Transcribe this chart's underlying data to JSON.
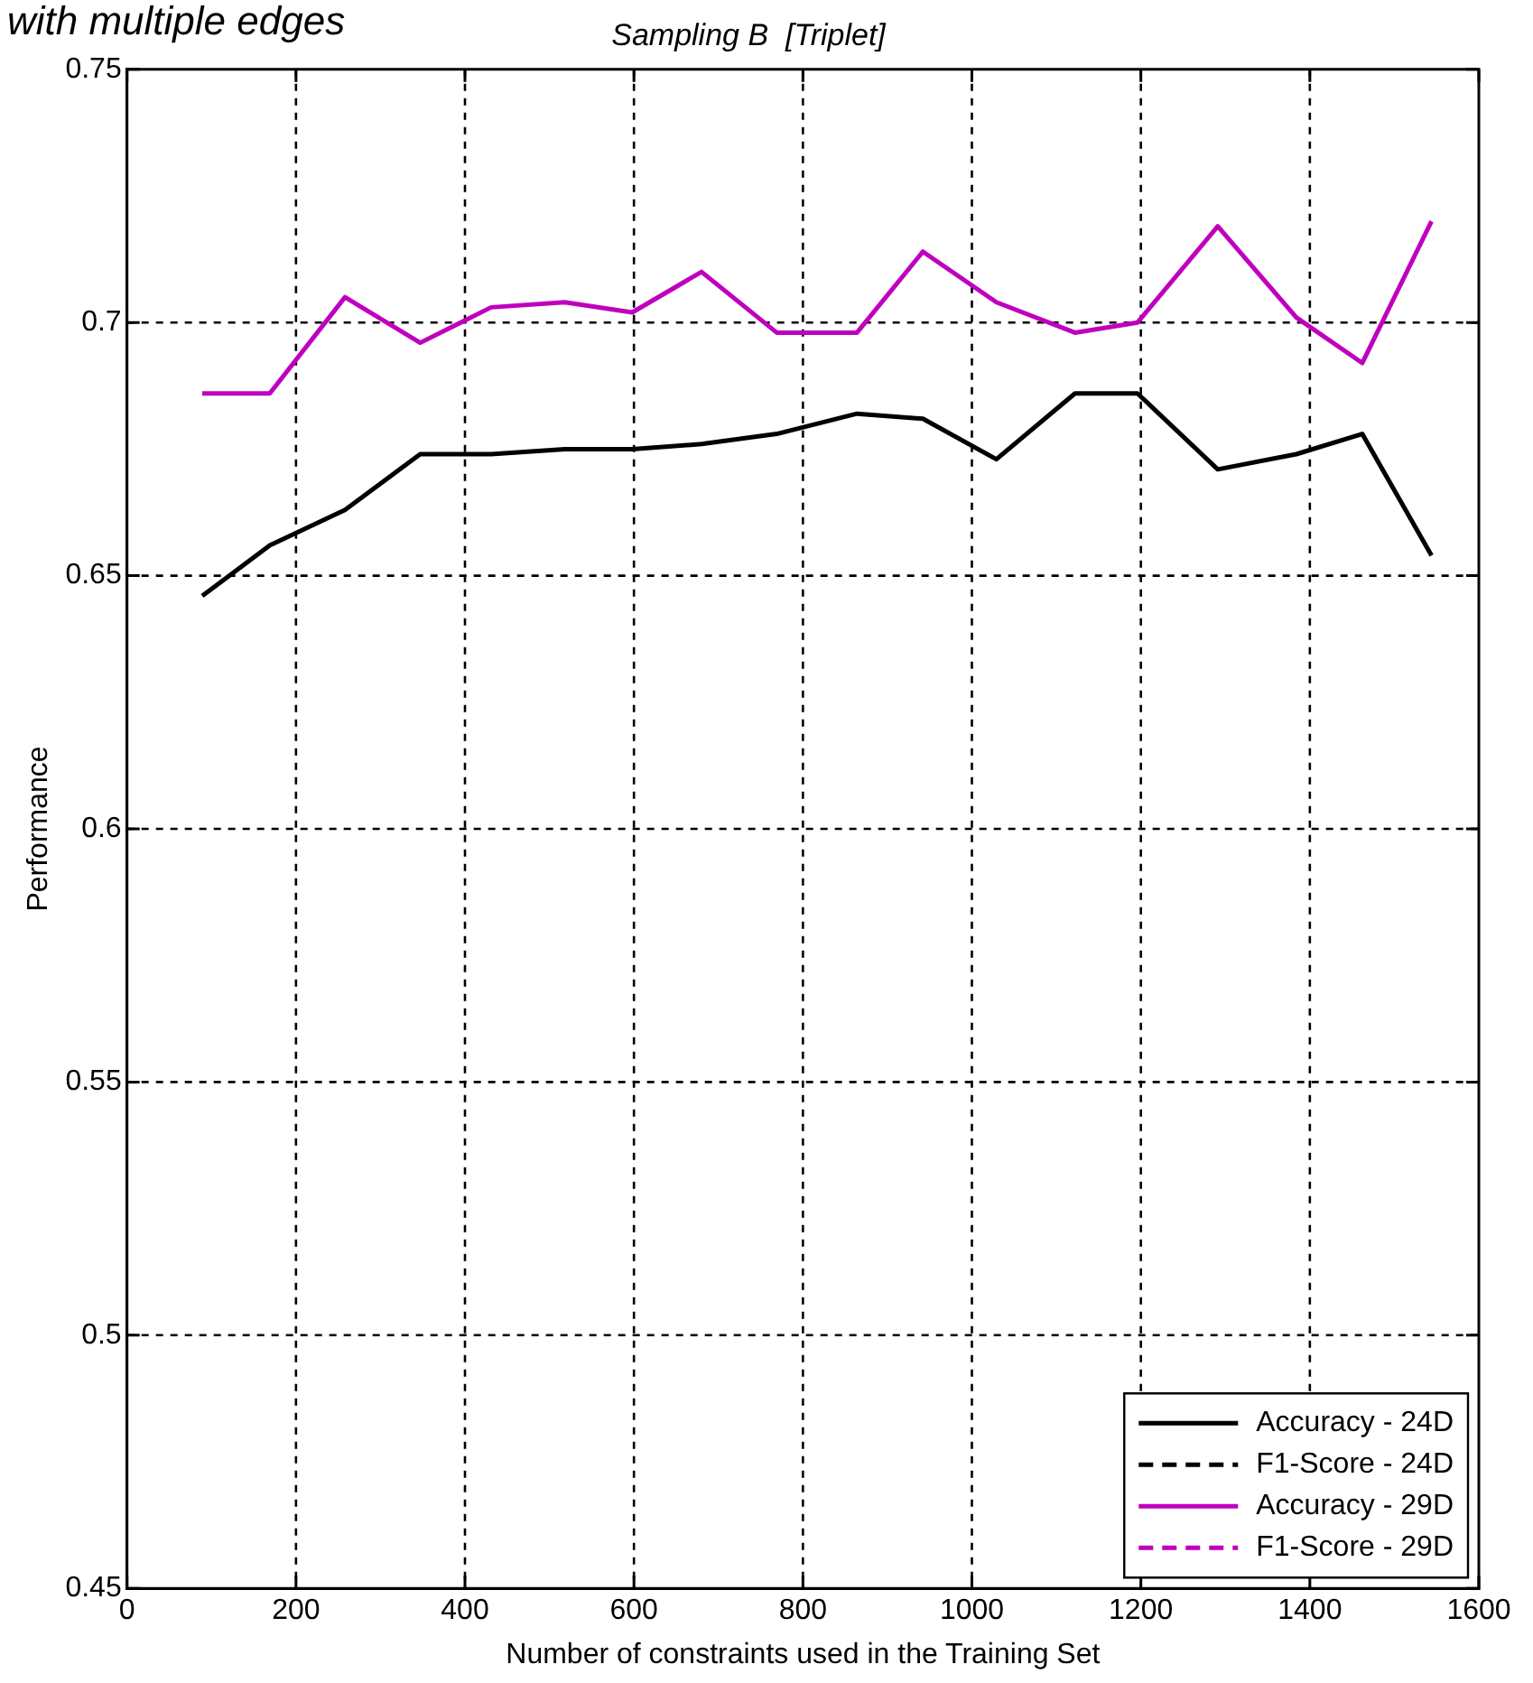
{
  "chart_data": {
    "type": "line",
    "title": "Sampling B  [Triplet]",
    "xlabel": "Number of constraints used in the Training Set",
    "ylabel": "Performance",
    "annotations": [
      "with multiple edges"
    ],
    "x": [
      89,
      169,
      258,
      347,
      431,
      518,
      598,
      680,
      769,
      864,
      942,
      1029,
      1122,
      1196,
      1291,
      1384,
      1462,
      1544
    ],
    "series": [
      {
        "name": "Accuracy - 24D",
        "color": "#000000",
        "line_style": "solid",
        "values": [
          0.646,
          0.656,
          0.663,
          0.674,
          0.674,
          0.675,
          0.675,
          0.676,
          0.678,
          0.682,
          0.681,
          0.673,
          0.686,
          0.686,
          0.671,
          0.674,
          0.678,
          0.654
        ]
      },
      {
        "name": "F1-Score - 24D",
        "color": "#000000",
        "line_style": "dashed",
        "values": [
          null,
          null,
          null,
          null,
          null,
          null,
          null,
          null,
          null,
          null,
          null,
          null,
          null,
          null,
          null,
          null,
          null,
          null
        ]
      },
      {
        "name": "Accuracy - 29D",
        "color": "#bf00bf",
        "line_style": "solid",
        "values": [
          0.686,
          0.686,
          0.705,
          0.696,
          0.703,
          0.704,
          0.702,
          0.71,
          0.698,
          0.698,
          0.714,
          0.704,
          0.698,
          0.7,
          0.719,
          0.701,
          0.692,
          0.72
        ]
      },
      {
        "name": "F1-Score - 29D",
        "color": "#bf00bf",
        "line_style": "dashed",
        "values": [
          null,
          null,
          null,
          null,
          null,
          null,
          null,
          null,
          null,
          null,
          null,
          null,
          null,
          null,
          null,
          null,
          null,
          null
        ]
      }
    ],
    "xlim": [
      0,
      1600
    ],
    "xticks": [
      0,
      200,
      400,
      600,
      800,
      1000,
      1200,
      1400,
      1600
    ],
    "ylim": [
      0.45,
      0.75
    ],
    "yticks": [
      0.45,
      0.5,
      0.55,
      0.6,
      0.65,
      0.7,
      0.75
    ],
    "grid": true,
    "legend": "bottom right",
    "marker": "none"
  }
}
